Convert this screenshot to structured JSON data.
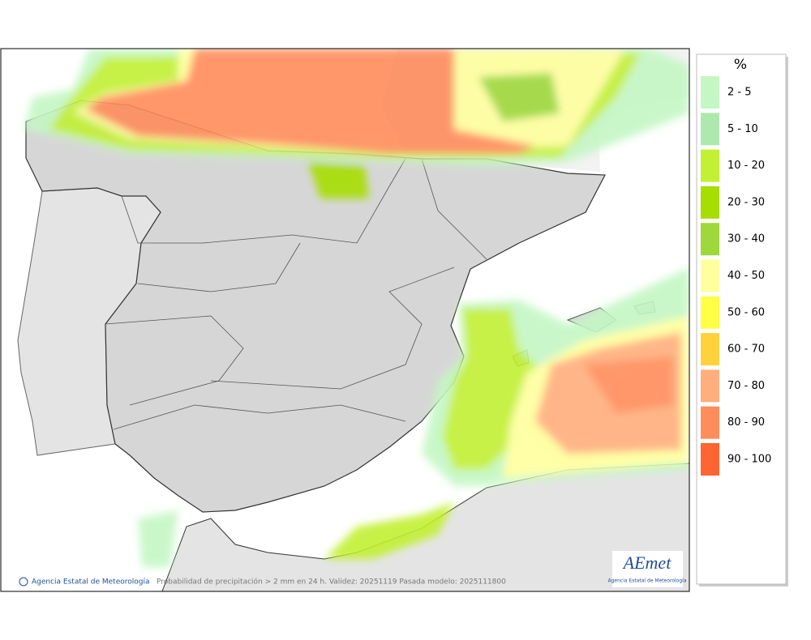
{
  "legend": {
    "title": "%",
    "items": [
      {
        "label": "2 - 5",
        "color": "#c4f7c4"
      },
      {
        "label": "5 - 10",
        "color": "#aee8ae"
      },
      {
        "label": "10 - 20",
        "color": "#c2f032"
      },
      {
        "label": "20 - 30",
        "color": "#a6de00"
      },
      {
        "label": "30 - 40",
        "color": "#9ed83a"
      },
      {
        "label": "40 - 50",
        "color": "#ffff9e"
      },
      {
        "label": "50 - 60",
        "color": "#ffff44"
      },
      {
        "label": "60 - 70",
        "color": "#ffd23c"
      },
      {
        "label": "70 - 80",
        "color": "#ffae7c"
      },
      {
        "label": "80 - 90",
        "color": "#ff8c5c"
      },
      {
        "label": "90 - 100",
        "color": "#ff6432"
      }
    ]
  },
  "footer": {
    "credit": "Agencia Estatal de Meteorología",
    "caption": "Probabilidad de precipitación > 2 mm en 24 h. Validez: 20251119 Pasada modelo: 2025111800"
  },
  "logo": {
    "name": "AEmet",
    "subtitle": "Agencia Estatal de Meteorología"
  }
}
